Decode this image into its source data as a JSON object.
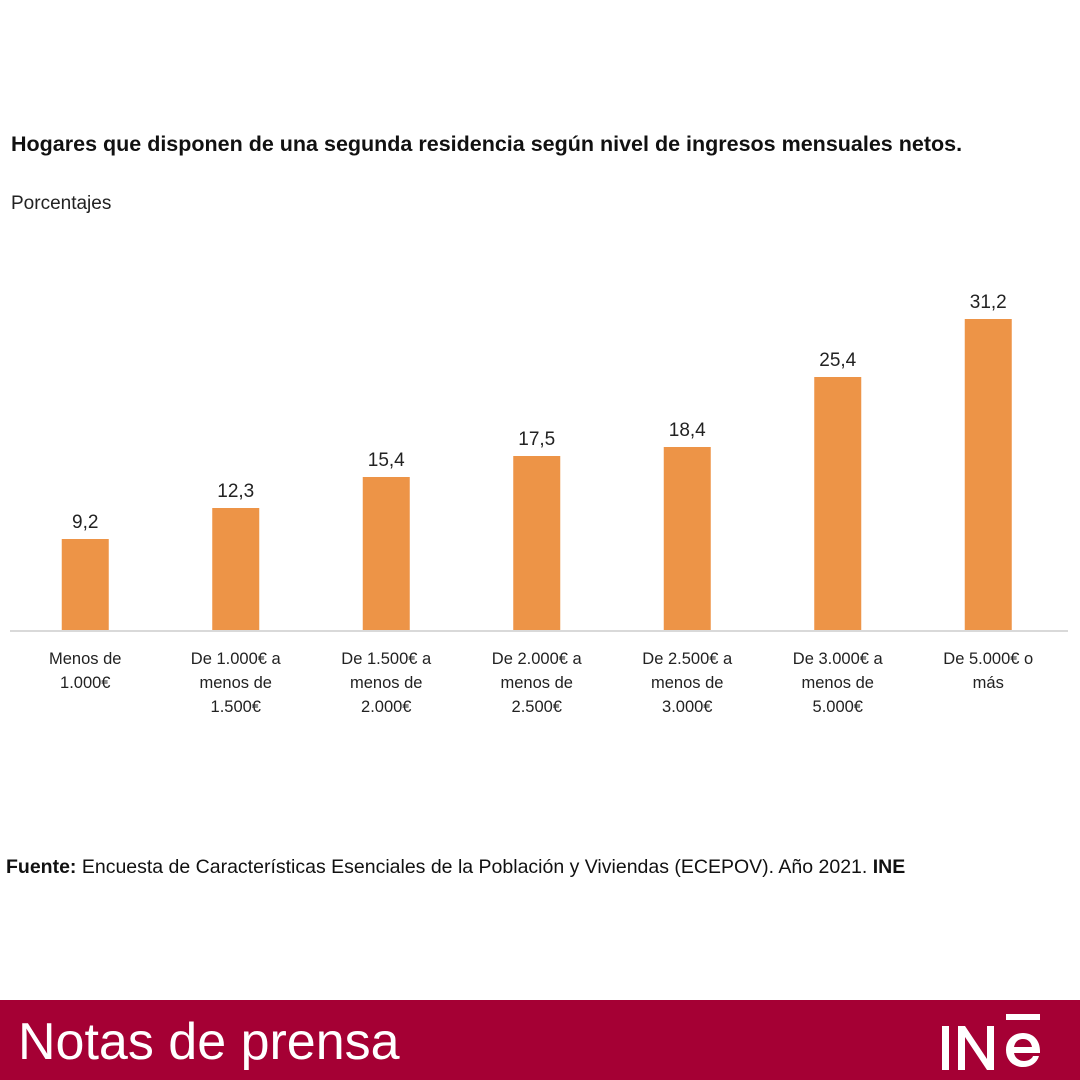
{
  "chart_data": {
    "type": "bar",
    "title": "Hogares que disponen de una segunda residencia según nivel de ingresos mensuales netos.",
    "subtitle": "Porcentajes",
    "categories": [
      [
        "Menos de",
        "1.000€"
      ],
      [
        "De 1.000€ a",
        "menos de",
        "1.500€"
      ],
      [
        "De 1.500€ a",
        "menos de",
        "2.000€"
      ],
      [
        "De 2.000€ a",
        "menos de",
        "2.500€"
      ],
      [
        "De 2.500€ a",
        "menos de",
        "3.000€"
      ],
      [
        "De 3.000€ a",
        "menos de",
        "5.000€"
      ],
      [
        "De 5.000€ o",
        "más"
      ]
    ],
    "values": [
      9.2,
      12.3,
      15.4,
      17.5,
      18.4,
      25.4,
      31.2
    ],
    "value_labels": [
      "9,2",
      "12,3",
      "15,4",
      "17,5",
      "18,4",
      "25,4",
      "31,2"
    ],
    "ylim": [
      0,
      35
    ],
    "grid": false,
    "bar_color": "#ed9447",
    "axis_color": "#d9d9d9"
  },
  "source": {
    "label": "Fuente:",
    "text": " Encuesta de Características Esenciales de la Población y Viviendas (ECEPOV). Año 2021. ",
    "org": "INE"
  },
  "footer": {
    "title": "Notas de prensa",
    "logo_text": "INE",
    "color": "#a50034"
  }
}
